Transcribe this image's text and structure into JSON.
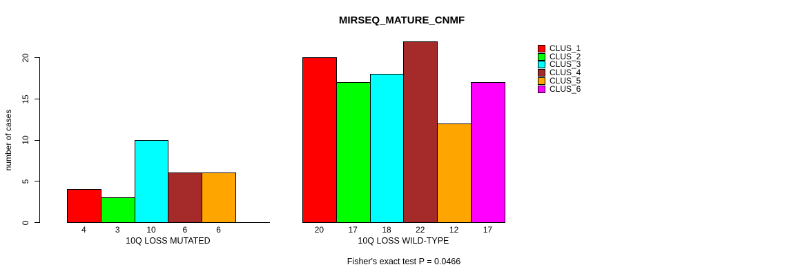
{
  "chart_data": {
    "type": "bar",
    "title": "MIRSEQ_MATURE_CNMF",
    "ylabel": "number of cases",
    "ylim": [
      0,
      22
    ],
    "yticks": [
      0,
      5,
      10,
      15,
      20
    ],
    "grid": false,
    "categories": [
      "CLUS_1",
      "CLUS_2",
      "CLUS_3",
      "CLUS_4",
      "CLUS_5",
      "CLUS_6"
    ],
    "legend": {
      "position": "right",
      "entries": [
        {
          "label": "CLUS_1",
          "color": "#ff0000"
        },
        {
          "label": "CLUS_2",
          "color": "#00ff00"
        },
        {
          "label": "CLUS_3",
          "color": "#00ffff"
        },
        {
          "label": "CLUS_4",
          "color": "#a52a2a"
        },
        {
          "label": "CLUS_5",
          "color": "#ffa500"
        },
        {
          "label": "CLUS_6",
          "color": "#ff00ff"
        }
      ]
    },
    "groups": [
      {
        "label": "10Q LOSS MUTATED",
        "values": [
          4,
          3,
          10,
          6,
          6,
          0
        ],
        "bar_labels": [
          "4",
          "3",
          "10",
          "6",
          "6",
          ""
        ]
      },
      {
        "label": "10Q LOSS WILD-TYPE",
        "values": [
          20,
          17,
          18,
          22,
          12,
          17
        ],
        "bar_labels": [
          "20",
          "17",
          "18",
          "22",
          "12",
          "17"
        ]
      }
    ],
    "footnote": "Fisher's exact test P = 0.0466"
  }
}
